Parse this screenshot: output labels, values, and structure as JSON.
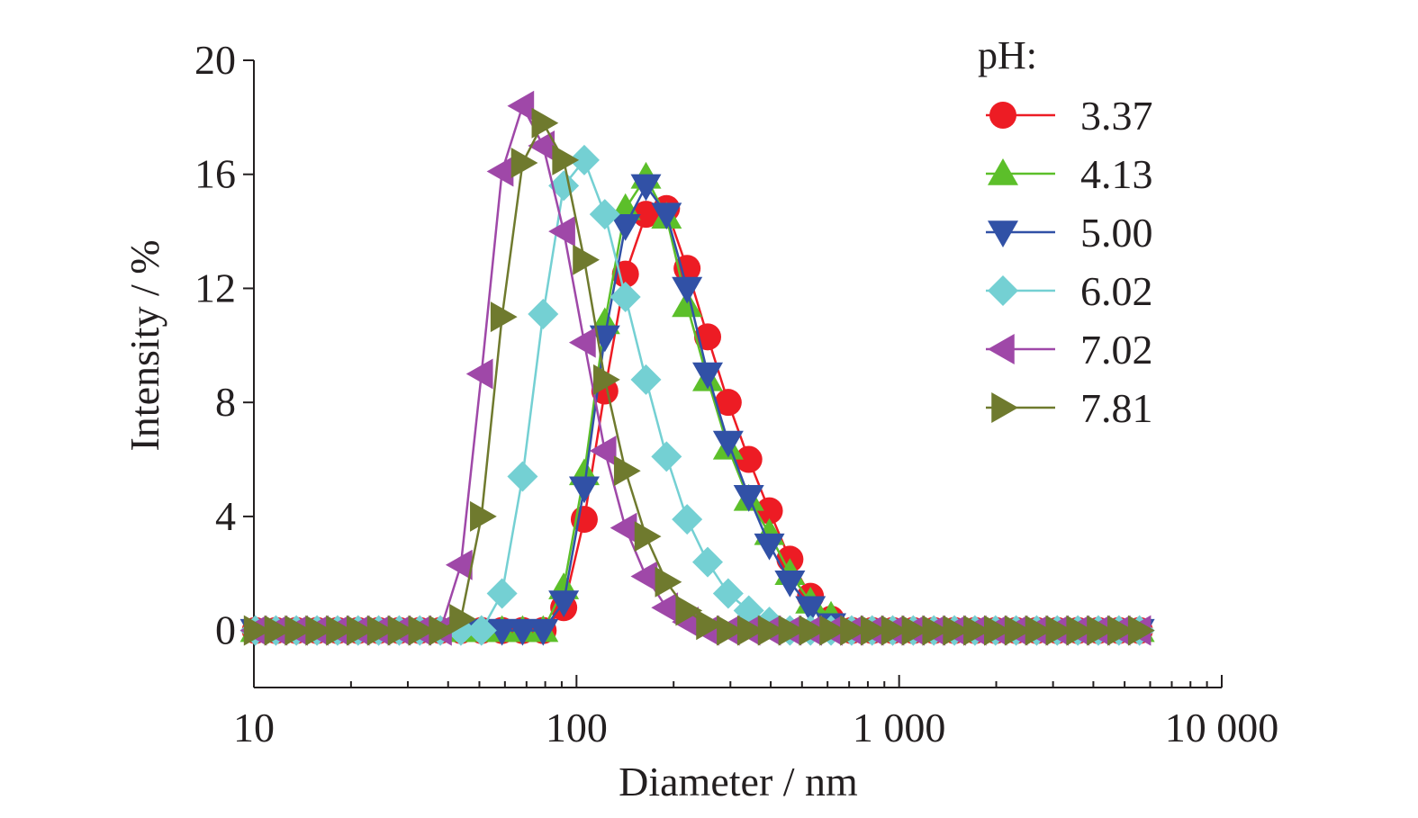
{
  "chart_data": {
    "type": "line",
    "xlabel": "Diameter / nm",
    "ylabel": "Intensity / %",
    "xscale": "log",
    "xlim": [
      10,
      10000
    ],
    "ylim": [
      -2,
      20
    ],
    "xticks": [
      10,
      100,
      1000,
      10000
    ],
    "xtick_labels": [
      "10",
      "100",
      "1 000",
      "10 000"
    ],
    "yticks": [
      0,
      4,
      8,
      12,
      16,
      20
    ],
    "ytick_labels": [
      "0",
      "4",
      "8",
      "12",
      "16",
      "20"
    ],
    "grid": false,
    "legend": {
      "title": "pH:",
      "placement": "top-right"
    },
    "x": [
      10.1,
      11.7,
      13.54,
      15.69,
      18.17,
      21.04,
      24.36,
      28.21,
      32.67,
      37.84,
      43.82,
      50.75,
      58.77,
      68.06,
      78.82,
      91.28,
      105.7,
      122.4,
      141.8,
      164.2,
      190.1,
      220.2,
      255.0,
      295.3,
      342.0,
      396.1,
      458.7,
      531.2,
      615.1,
      712.4,
      825.0,
      955.4,
      1106,
      1281,
      1484,
      1718,
      1990,
      2305,
      2669,
      3091,
      3580,
      4145,
      4801,
      5560
    ],
    "series": [
      {
        "name": "3.37",
        "color": "#ed1c24",
        "marker": "circle",
        "values": [
          0,
          0,
          0,
          0,
          0,
          0,
          0,
          0,
          0,
          0,
          0,
          0,
          0,
          0,
          0,
          0.8,
          3.9,
          8.4,
          12.5,
          14.6,
          14.8,
          12.7,
          10.3,
          8.0,
          6.0,
          4.2,
          2.5,
          1.2,
          0.4,
          0,
          0,
          0,
          0,
          0,
          0,
          0,
          0,
          0,
          0,
          0,
          0,
          0,
          0,
          0
        ]
      },
      {
        "name": "4.13",
        "color": "#5cbf2a",
        "marker": "triangle-up",
        "values": [
          0,
          0,
          0,
          0,
          0,
          0,
          0,
          0,
          0,
          0,
          0,
          0,
          0,
          0,
          0,
          1.5,
          5.5,
          10.8,
          14.8,
          15.9,
          14.5,
          11.4,
          8.8,
          6.4,
          4.6,
          3.4,
          2.0,
          1.0,
          0.5,
          0,
          0,
          0,
          0,
          0,
          0,
          0,
          0,
          0,
          0,
          0,
          0,
          0,
          0,
          0
        ]
      },
      {
        "name": "5.00",
        "color": "#3151a6",
        "marker": "triangle-down",
        "values": [
          0,
          0,
          0,
          0,
          0,
          0,
          0,
          0,
          0,
          0,
          0,
          0,
          0,
          0,
          0,
          1.0,
          5.0,
          10.3,
          14.2,
          15.6,
          14.6,
          12.0,
          9.0,
          6.6,
          4.7,
          3.0,
          1.7,
          0.8,
          0.2,
          0,
          0,
          0,
          0,
          0,
          0,
          0,
          0,
          0,
          0,
          0,
          0,
          0,
          0,
          0
        ]
      },
      {
        "name": "6.02",
        "color": "#74d0d3",
        "marker": "diamond",
        "values": [
          0,
          0,
          0,
          0,
          0,
          0,
          0,
          0,
          0,
          0,
          0,
          0,
          1.3,
          5.4,
          11.1,
          15.6,
          16.5,
          14.6,
          11.7,
          8.8,
          6.1,
          3.9,
          2.4,
          1.3,
          0.7,
          0.3,
          0,
          0,
          0,
          0,
          0,
          0,
          0,
          0,
          0,
          0,
          0,
          0,
          0,
          0,
          0,
          0,
          0,
          0
        ]
      },
      {
        "name": "7.02",
        "color": "#9f48a8",
        "marker": "triangle-left",
        "values": [
          0,
          0,
          0,
          0,
          0,
          0,
          0,
          0,
          0,
          0,
          2.3,
          9.0,
          16.1,
          18.4,
          17.0,
          14.0,
          10.1,
          6.3,
          3.6,
          1.9,
          0.8,
          0.3,
          0,
          0,
          0,
          0,
          0,
          0,
          0,
          0,
          0,
          0,
          0,
          0,
          0,
          0,
          0,
          0,
          0,
          0,
          0,
          0,
          0,
          0
        ]
      },
      {
        "name": "7.81",
        "color": "#6f7a2e",
        "marker": "triangle-right",
        "values": [
          0,
          0,
          0,
          0,
          0,
          0,
          0,
          0,
          0,
          0,
          0.4,
          4.0,
          11.0,
          16.4,
          17.8,
          16.5,
          13.0,
          8.8,
          5.6,
          3.3,
          1.7,
          0.7,
          0.2,
          0,
          0,
          0,
          0,
          0,
          0,
          0,
          0,
          0,
          0,
          0,
          0,
          0,
          0,
          0,
          0,
          0,
          0,
          0,
          0,
          0
        ]
      }
    ]
  }
}
